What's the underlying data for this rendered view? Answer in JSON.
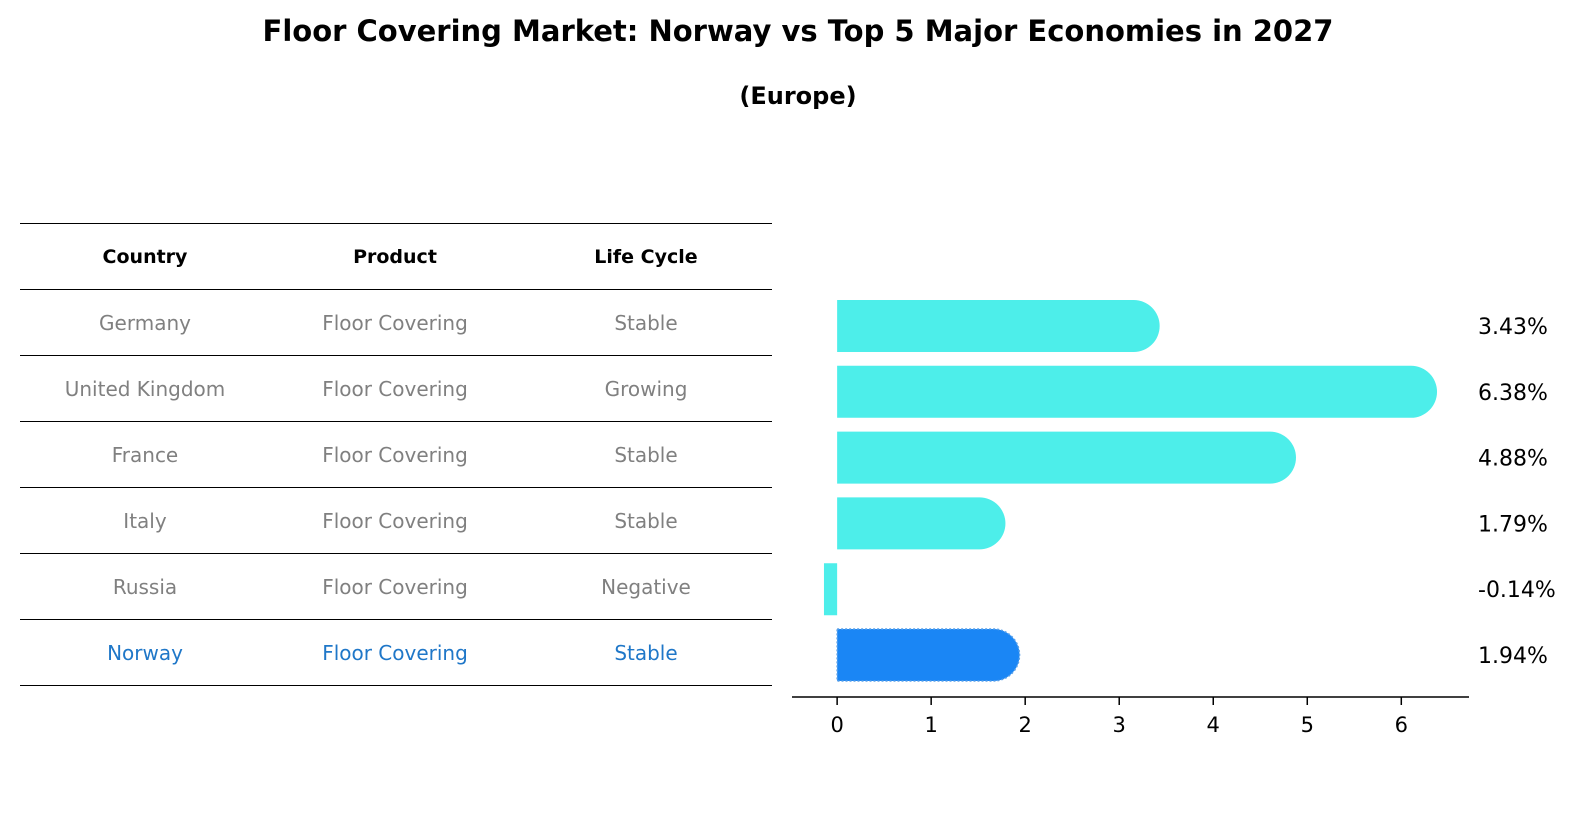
{
  "title": "Floor Covering Market: Norway vs Top 5 Major Economies in 2027",
  "subtitle": "(Europe)",
  "table": {
    "headers": [
      "Country",
      "Product",
      "Life Cycle"
    ],
    "rows": [
      {
        "country": "Germany",
        "product": "Floor Covering",
        "life_cycle": "Stable"
      },
      {
        "country": "United Kingdom",
        "product": "Floor Covering",
        "life_cycle": "Growing"
      },
      {
        "country": "France",
        "product": "Floor Covering",
        "life_cycle": "Stable"
      },
      {
        "country": "Italy",
        "product": "Floor Covering",
        "life_cycle": "Stable"
      },
      {
        "country": "Russia",
        "product": "Floor Covering",
        "life_cycle": "Negative"
      },
      {
        "country": "Norway",
        "product": "Floor Covering",
        "life_cycle": "Stable"
      }
    ],
    "highlight_row": 5
  },
  "colors": {
    "bar": "#4deeea",
    "highlight_bar": "#1a86f5",
    "highlight_text": "#1f77c8",
    "muted_text": "#808080"
  },
  "chart_data": {
    "type": "bar",
    "orientation": "horizontal",
    "categories": [
      "Germany",
      "United Kingdom",
      "France",
      "Italy",
      "Russia",
      "Norway"
    ],
    "values": [
      3.43,
      6.38,
      4.88,
      1.79,
      -0.14,
      1.94
    ],
    "data_labels": [
      "3.43%",
      "6.38%",
      "4.88%",
      "1.79%",
      "-0.14%",
      "1.94%"
    ],
    "xticks": [
      0,
      1,
      2,
      3,
      4,
      5,
      6
    ],
    "xlim": [
      -0.48,
      6.72
    ],
    "highlight_index": 5,
    "grid": false
  }
}
